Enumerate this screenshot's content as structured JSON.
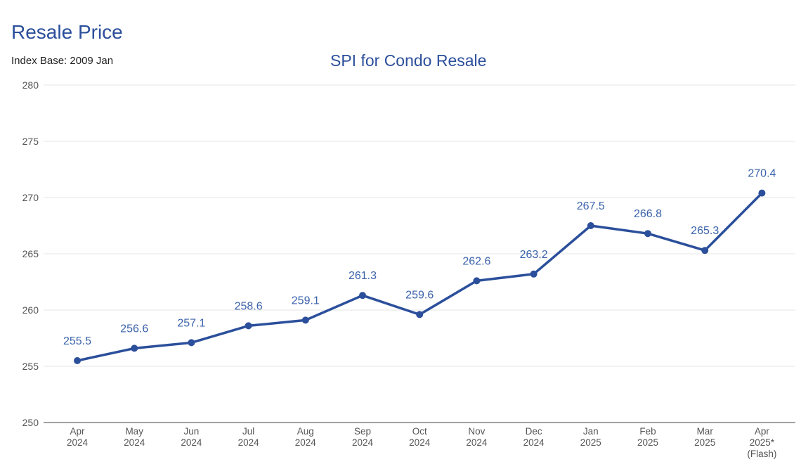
{
  "header": {
    "title": "Resale Price",
    "index_base": "Index Base: 2009 Jan"
  },
  "chart_data": {
    "type": "line",
    "title": "SPI for Condo Resale",
    "xlabel": "",
    "ylabel": "",
    "ylim": [
      250,
      280
    ],
    "yticks": [
      250,
      255,
      260,
      265,
      270,
      275,
      280
    ],
    "grid": true,
    "categories": [
      [
        "Apr",
        "2024"
      ],
      [
        "May",
        "2024"
      ],
      [
        "Jun",
        "2024"
      ],
      [
        "Jul",
        "2024"
      ],
      [
        "Aug",
        "2024"
      ],
      [
        "Sep",
        "2024"
      ],
      [
        "Oct",
        "2024"
      ],
      [
        "Nov",
        "2024"
      ],
      [
        "Dec",
        "2024"
      ],
      [
        "Jan",
        "2025"
      ],
      [
        "Feb",
        "2025"
      ],
      [
        "Mar",
        "2025"
      ],
      [
        "Apr",
        "2025*",
        "(Flash)"
      ]
    ],
    "series": [
      {
        "values": [
          255.5,
          256.6,
          257.1,
          258.6,
          259.1,
          261.3,
          259.6,
          262.6,
          263.2,
          267.5,
          266.8,
          265.3,
          270.4
        ]
      }
    ],
    "colors": {
      "line": "#2b4f9b",
      "label": "#3a62aa",
      "grid": "#e6e6e6",
      "axis": "#444444"
    }
  }
}
